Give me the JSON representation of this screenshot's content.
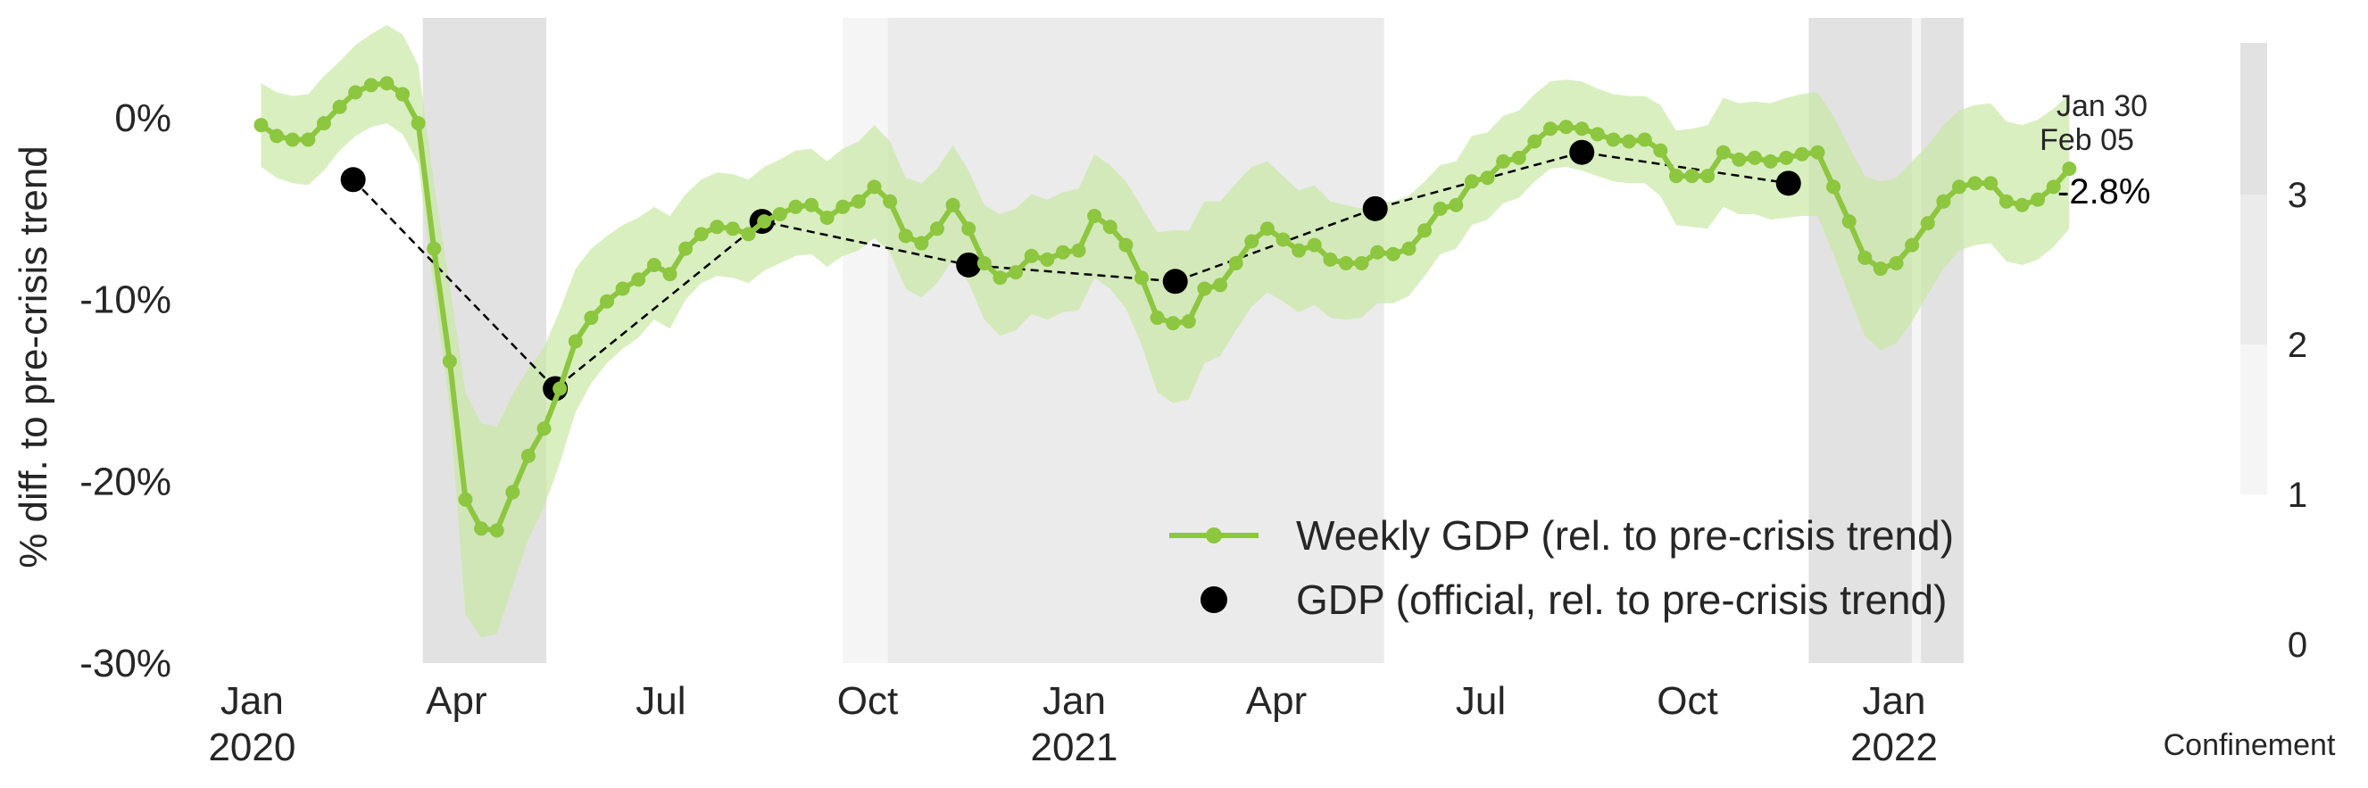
{
  "chart_data": {
    "type": "line",
    "ylabel": "% diff. to pre-crisis trend",
    "ylim": [
      -30,
      5.5
    ],
    "y_ticks": [
      {
        "value": 0,
        "label": "0%"
      },
      {
        "value": -10,
        "label": "-10%"
      },
      {
        "value": -20,
        "label": "-20%"
      },
      {
        "value": -30,
        "label": "-30%"
      }
    ],
    "x_ticks": [
      {
        "date": "2020-01-01",
        "label": "Jan",
        "sub": "2020"
      },
      {
        "date": "2020-04-01",
        "label": "Apr",
        "sub": ""
      },
      {
        "date": "2020-07-01",
        "label": "Jul",
        "sub": ""
      },
      {
        "date": "2020-10-01",
        "label": "Oct",
        "sub": ""
      },
      {
        "date": "2021-01-01",
        "label": "Jan",
        "sub": "2021"
      },
      {
        "date": "2021-04-01",
        "label": "Apr",
        "sub": ""
      },
      {
        "date": "2021-07-01",
        "label": "Jul",
        "sub": ""
      },
      {
        "date": "2021-10-01",
        "label": "Oct",
        "sub": ""
      },
      {
        "date": "2022-01-01",
        "label": "Jan",
        "sub": "2022"
      }
    ],
    "x_range": [
      "2019-12-08",
      "2022-02-28"
    ],
    "grid": false,
    "legend_position": "bottom-right",
    "series": [
      {
        "name": "Weekly GDP (rel. to pre-crisis trend)",
        "color": "#8dc63f",
        "band_color": "#c9e8a5",
        "start_date": "2020-01-05",
        "values": [
          -0.4,
          -1.0,
          -1.2,
          -1.2,
          -0.3,
          0.6,
          1.4,
          1.8,
          1.9,
          1.3,
          -0.3,
          -7.2,
          -13.4,
          -21.0,
          -22.6,
          -22.7,
          -20.6,
          -18.6,
          -17.1,
          -14.9,
          -12.3,
          -11.0,
          -10.1,
          -9.4,
          -8.9,
          -8.1,
          -8.6,
          -7.2,
          -6.4,
          -6.0,
          -6.1,
          -6.4,
          -5.7,
          -5.3,
          -4.9,
          -4.8,
          -5.5,
          -4.9,
          -4.6,
          -3.8,
          -4.6,
          -6.5,
          -6.9,
          -6.1,
          -4.8,
          -6.1,
          -8.0,
          -8.8,
          -8.5,
          -7.6,
          -7.8,
          -7.4,
          -7.3,
          -5.4,
          -6.0,
          -7.0,
          -8.8,
          -11.0,
          -11.3,
          -11.2,
          -9.4,
          -9.2,
          -8.0,
          -6.8,
          -6.1,
          -6.7,
          -7.3,
          -7.0,
          -7.8,
          -8.0,
          -8.0,
          -7.4,
          -7.5,
          -7.2,
          -6.2,
          -5.0,
          -4.8,
          -3.5,
          -3.3,
          -2.4,
          -2.2,
          -1.3,
          -0.6,
          -0.5,
          -0.6,
          -0.9,
          -1.2,
          -1.3,
          -1.2,
          -1.8,
          -3.2,
          -3.2,
          -3.2,
          -1.9,
          -2.3,
          -2.2,
          -2.4,
          -2.2,
          -2.0,
          -1.9,
          -3.8,
          -5.7,
          -7.7,
          -8.3,
          -8.0,
          -7.0,
          -5.8,
          -4.6,
          -3.8,
          -3.6,
          -3.6,
          -4.6,
          -4.8,
          -4.5,
          -3.8,
          -2.8
        ],
        "lower": [
          -2.7,
          -3.3,
          -3.6,
          -3.7,
          -2.9,
          -1.8,
          -1.0,
          -0.5,
          -0.3,
          -0.9,
          -2.5,
          -9.5,
          -16.0,
          -27.3,
          -28.6,
          -28.4,
          -25.8,
          -23.2,
          -21.4,
          -19.0,
          -16.2,
          -14.6,
          -13.5,
          -12.7,
          -12.1,
          -11.1,
          -11.6,
          -10.0,
          -9.1,
          -8.7,
          -8.8,
          -9.1,
          -8.4,
          -8.0,
          -7.6,
          -7.5,
          -8.2,
          -7.6,
          -7.3,
          -6.6,
          -7.4,
          -9.4,
          -9.9,
          -9.1,
          -7.8,
          -9.1,
          -11.1,
          -12.0,
          -11.7,
          -10.8,
          -11.1,
          -10.7,
          -10.6,
          -8.8,
          -9.4,
          -10.5,
          -12.5,
          -15.1,
          -15.7,
          -15.5,
          -13.5,
          -13.1,
          -11.7,
          -10.4,
          -9.6,
          -10.1,
          -10.7,
          -10.3,
          -11.0,
          -11.1,
          -11.0,
          -10.2,
          -10.2,
          -9.8,
          -8.7,
          -7.5,
          -7.2,
          -5.9,
          -5.6,
          -4.7,
          -4.4,
          -3.5,
          -2.8,
          -2.7,
          -2.9,
          -3.2,
          -3.5,
          -3.6,
          -3.6,
          -4.3,
          -5.9,
          -6.0,
          -6.1,
          -4.9,
          -5.3,
          -5.3,
          -5.6,
          -5.5,
          -5.4,
          -5.4,
          -7.5,
          -9.8,
          -12.0,
          -12.8,
          -12.4,
          -11.2,
          -9.7,
          -8.3,
          -7.3,
          -7.0,
          -6.9,
          -7.9,
          -8.1,
          -7.8,
          -7.1,
          -6.1
        ],
        "upper": [
          1.9,
          1.4,
          1.2,
          1.3,
          2.3,
          3.1,
          4.0,
          4.6,
          5.1,
          4.6,
          2.9,
          -3.6,
          -9.2,
          -15.1,
          -16.8,
          -17.0,
          -15.2,
          -13.8,
          -12.6,
          -10.6,
          -8.3,
          -7.2,
          -6.5,
          -5.9,
          -5.5,
          -4.9,
          -5.4,
          -4.2,
          -3.4,
          -3.0,
          -3.1,
          -3.4,
          -2.7,
          -2.3,
          -1.8,
          -1.7,
          -2.4,
          -1.7,
          -1.3,
          -0.4,
          -1.3,
          -3.3,
          -3.6,
          -2.8,
          -1.5,
          -2.9,
          -4.8,
          -5.3,
          -5.0,
          -4.2,
          -4.5,
          -4.1,
          -3.9,
          -2.0,
          -2.6,
          -3.5,
          -4.9,
          -6.3,
          -6.2,
          -6.2,
          -4.6,
          -4.6,
          -3.6,
          -2.7,
          -2.4,
          -3.2,
          -4.0,
          -3.7,
          -4.6,
          -4.8,
          -5.0,
          -4.6,
          -4.6,
          -4.3,
          -3.5,
          -2.6,
          -2.4,
          -1.0,
          -0.8,
          0.1,
          0.4,
          1.3,
          2.0,
          2.1,
          2.0,
          1.6,
          1.3,
          1.2,
          1.2,
          0.7,
          -0.7,
          -0.6,
          -0.4,
          1.1,
          0.8,
          0.9,
          0.8,
          1.1,
          1.3,
          1.4,
          0.1,
          -1.6,
          -3.2,
          -3.5,
          -3.3,
          -2.4,
          -1.5,
          -0.4,
          0.4,
          0.7,
          0.8,
          -0.2,
          -0.4,
          -0.1,
          0.5,
          1.3
        ]
      },
      {
        "name": "GDP (official, rel. to pre-crisis trend)",
        "color": "#000000",
        "points": [
          {
            "date": "2020-02-15",
            "value": -3.4
          },
          {
            "date": "2020-05-15",
            "value": -14.9
          },
          {
            "date": "2020-08-15",
            "value": -5.7
          },
          {
            "date": "2020-11-15",
            "value": -8.1
          },
          {
            "date": "2021-02-15",
            "value": -9.0
          },
          {
            "date": "2021-05-15",
            "value": -5.0
          },
          {
            "date": "2021-08-15",
            "value": -1.9
          },
          {
            "date": "2021-11-15",
            "value": -3.6
          }
        ]
      }
    ],
    "confinement_bands": [
      {
        "start": "2020-03-17",
        "end": "2020-05-11",
        "level": 3
      },
      {
        "start": "2020-09-20",
        "end": "2020-10-10",
        "level": 1
      },
      {
        "start": "2020-10-10",
        "end": "2021-05-19",
        "level": 2
      },
      {
        "start": "2021-11-24",
        "end": "2022-01-09",
        "level": 3
      },
      {
        "start": "2022-01-09",
        "end": "2022-01-13",
        "level": 1
      },
      {
        "start": "2022-01-13",
        "end": "2022-02-01",
        "level": 3
      }
    ],
    "band_colors": {
      "1": "#f5f5f5",
      "2": "#ebebeb",
      "3": "#e2e2e2"
    },
    "annotation": {
      "line1": "Jan 30",
      "line2": "Feb 05",
      "last_value": "-2.8%"
    },
    "colorbar": {
      "label": "Confinement",
      "ticks": [
        "0",
        "1",
        "2",
        "3"
      ],
      "colors": [
        "#f5f5f5",
        "#ebebeb",
        "#e2e2e2"
      ]
    }
  }
}
